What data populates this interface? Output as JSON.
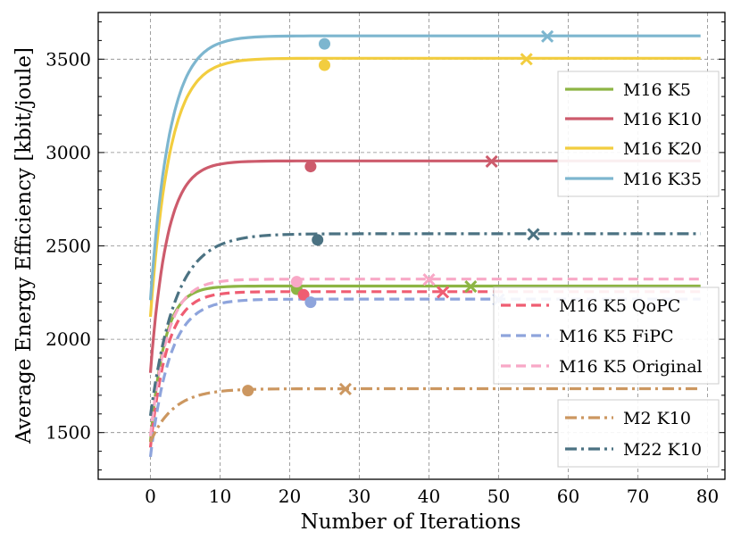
{
  "chart_data": {
    "type": "line",
    "xlabel": "Number of Iterations",
    "ylabel": "Average Energy Efficiency [kbit/joule]",
    "xlim": [
      -7.5,
      82.5
    ],
    "ylim": [
      1250,
      3750
    ],
    "xticks": [
      0,
      10,
      20,
      30,
      40,
      50,
      60,
      70,
      80
    ],
    "yticks": [
      1500,
      2000,
      2500,
      3000,
      3500
    ],
    "grid": true,
    "x_max_iteration": 79,
    "series": [
      {
        "name": "M16 K5",
        "color": "#8db544",
        "dash": "solid",
        "start": 1450,
        "final": 2285,
        "rate": 0.5,
        "marker_dot": [
          21,
          2268
        ],
        "marker_x": [
          46,
          2282
        ]
      },
      {
        "name": "M16 K10",
        "color": "#cd5b6c",
        "dash": "solid",
        "start": 1820,
        "final": 2955,
        "rate": 0.42,
        "marker_dot": [
          23,
          2925
        ],
        "marker_x": [
          49,
          2952
        ]
      },
      {
        "name": "M16 K20",
        "color": "#f2cd3f",
        "dash": "solid",
        "start": 2120,
        "final": 3505,
        "rate": 0.36,
        "marker_dot": [
          25,
          3468
        ],
        "marker_x": [
          54,
          3500
        ]
      },
      {
        "name": "M16 K35",
        "color": "#7db6cf",
        "dash": "solid",
        "start": 2210,
        "final": 3625,
        "rate": 0.36,
        "marker_dot": [
          25,
          3582
        ],
        "marker_x": [
          57,
          3622
        ]
      },
      {
        "name": "M16 K5 QoPC",
        "color": "#ef5d72",
        "dash": "dashed",
        "start": 1420,
        "final": 2255,
        "rate": 0.42,
        "marker_dot": [
          22,
          2238
        ],
        "marker_x": [
          42,
          2252
        ]
      },
      {
        "name": "M16 K5 FiPC",
        "color": "#8ea4dc",
        "dash": "dashed",
        "start": 1370,
        "final": 2215,
        "rate": 0.36,
        "marker_dot": [
          23,
          2198
        ],
        "marker_x": [
          50,
          2212
        ]
      },
      {
        "name": "M16 K5 Original",
        "color": "#f8a8c6",
        "dash": "dashed",
        "start": 1480,
        "final": 2322,
        "rate": 0.42,
        "marker_dot": [
          21,
          2308
        ],
        "marker_x": [
          40,
          2320
        ]
      },
      {
        "name": "M2 K10",
        "color": "#cc9760",
        "dash": "dashdot",
        "start": 1450,
        "final": 1735,
        "rate": 0.3,
        "marker_dot": [
          14,
          1725
        ],
        "marker_x": [
          28,
          1733
        ]
      },
      {
        "name": "M22 K10",
        "color": "#4b7282",
        "dash": "dashdot",
        "start": 1590,
        "final": 2565,
        "rate": 0.28,
        "marker_dot": [
          24,
          2532
        ],
        "marker_x": [
          55,
          2562
        ]
      }
    ],
    "legends": [
      {
        "placement": "upper-right",
        "entries": [
          "M16 K5",
          "M16 K10",
          "M16 K20",
          "M16 K35"
        ]
      },
      {
        "placement": "center-right",
        "entries": [
          "M16 K5 QoPC",
          "M16 K5 FiPC",
          "M16 K5 Original"
        ]
      },
      {
        "placement": "lower-right",
        "entries": [
          "M2 K10",
          "M22 K10"
        ]
      }
    ]
  }
}
